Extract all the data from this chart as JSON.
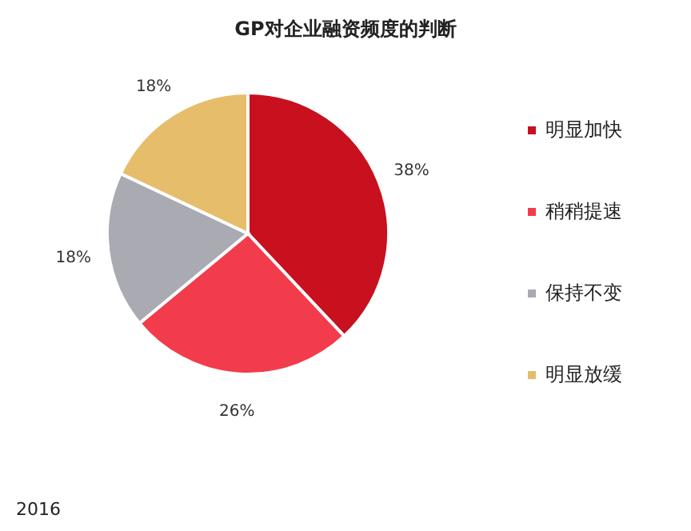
{
  "chart_data": {
    "type": "pie",
    "title": "GP对企业融资频度的判断",
    "categories": [
      "明显加快",
      "稍稍提速",
      "保持不变",
      "明显放缓"
    ],
    "values": [
      38,
      26,
      18,
      18
    ],
    "colors": [
      "#c8101e",
      "#f23c4c",
      "#a9aab2",
      "#e6bd6b"
    ],
    "value_labels": [
      "38%",
      "26%",
      "18%",
      "18%"
    ],
    "legend": "right",
    "annotations": [
      "2016"
    ]
  }
}
